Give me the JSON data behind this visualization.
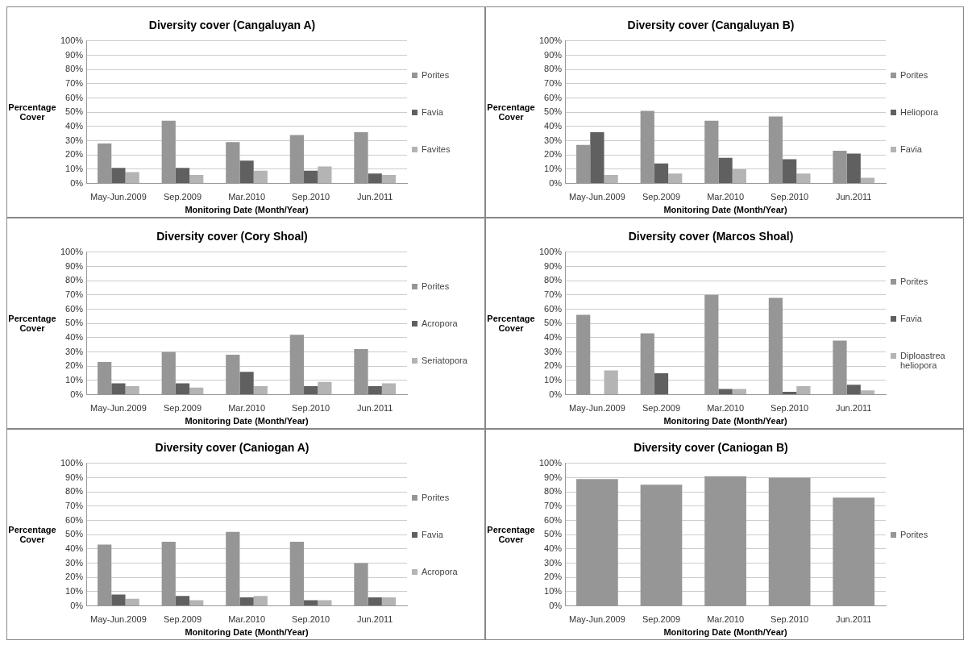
{
  "chart_data": [
    {
      "type": "bar",
      "title": "Diversity cover (Cangaluyan A)",
      "xlabel": "Monitoring Date (Month/Year)",
      "ylabel": "Percentage Cover",
      "categories": [
        "May-Jun.2009",
        "Sep.2009",
        "Mar.2010",
        "Sep.2010",
        "Jun.2011"
      ],
      "series": [
        {
          "name": "Porites",
          "color": "#969696",
          "values": [
            28,
            44,
            29,
            34,
            36
          ]
        },
        {
          "name": "Favia",
          "color": "#606060",
          "values": [
            11,
            11,
            16,
            9,
            7
          ]
        },
        {
          "name": "Favites",
          "color": "#b4b4b4",
          "values": [
            8,
            6,
            9,
            12,
            6
          ]
        }
      ],
      "ylim": [
        0,
        100
      ],
      "yticks": [
        {
          "value": 0,
          "label": "0%"
        },
        {
          "value": 10,
          "label": "10%"
        },
        {
          "value": 20,
          "label": "20%"
        },
        {
          "value": 30,
          "label": "30%"
        },
        {
          "value": 40,
          "label": "40%"
        },
        {
          "value": 50,
          "label": "50%"
        },
        {
          "value": 60,
          "label": "60%"
        },
        {
          "value": 70,
          "label": "70%"
        },
        {
          "value": 80,
          "label": "80%"
        },
        {
          "value": 90,
          "label": "90%"
        },
        {
          "value": 100,
          "label": "100%"
        }
      ],
      "grid": "y",
      "legend": "right"
    },
    {
      "type": "bar",
      "title": "Diversity cover (Cangaluyan B)",
      "xlabel": "Monitoring Date (Month/Year)",
      "ylabel": "Percentage Cover",
      "categories": [
        "May-Jun.2009",
        "Sep.2009",
        "Mar.2010",
        "Sep.2010",
        "Jun.2011"
      ],
      "series": [
        {
          "name": "Porites",
          "color": "#969696",
          "values": [
            27,
            51,
            44,
            47,
            23
          ]
        },
        {
          "name": "Heliopora",
          "color": "#606060",
          "values": [
            36,
            14,
            18,
            17,
            21
          ]
        },
        {
          "name": "Favia",
          "color": "#b4b4b4",
          "values": [
            6,
            7,
            10,
            7,
            4
          ]
        }
      ],
      "ylim": [
        0,
        100
      ],
      "yticks": [
        {
          "value": 0,
          "label": "0%"
        },
        {
          "value": 10,
          "label": "10%"
        },
        {
          "value": 20,
          "label": "20%"
        },
        {
          "value": 30,
          "label": "30%"
        },
        {
          "value": 40,
          "label": "40%"
        },
        {
          "value": 50,
          "label": "50%"
        },
        {
          "value": 60,
          "label": "60%"
        },
        {
          "value": 70,
          "label": "70%"
        },
        {
          "value": 80,
          "label": "80%"
        },
        {
          "value": 90,
          "label": "90%"
        },
        {
          "value": 100,
          "label": "100%"
        }
      ],
      "grid": "y",
      "legend": "right"
    },
    {
      "type": "bar",
      "title": "Diversity cover (Cory Shoal)",
      "xlabel": "Monitoring Date (Month/Year)",
      "ylabel": "Percentage Cover",
      "categories": [
        "May-Jun.2009",
        "Sep.2009",
        "Mar.2010",
        "Sep.2010",
        "Jun.2011"
      ],
      "series": [
        {
          "name": "Porites",
          "color": "#969696",
          "values": [
            23,
            30,
            28,
            42,
            32
          ]
        },
        {
          "name": "Acropora",
          "color": "#606060",
          "values": [
            8,
            8,
            16,
            6,
            6
          ]
        },
        {
          "name": "Seriatopora",
          "color": "#b4b4b4",
          "values": [
            6,
            5,
            6,
            9,
            8
          ]
        }
      ],
      "ylim": [
        0,
        100
      ],
      "yticks": [
        {
          "value": 0,
          "label": "0%"
        },
        {
          "value": 10,
          "label": "10%"
        },
        {
          "value": 20,
          "label": "20%"
        },
        {
          "value": 30,
          "label": "30%"
        },
        {
          "value": 40,
          "label": "40%"
        },
        {
          "value": 50,
          "label": "50%"
        },
        {
          "value": 60,
          "label": "60%"
        },
        {
          "value": 70,
          "label": "70%"
        },
        {
          "value": 80,
          "label": "80%"
        },
        {
          "value": 90,
          "label": "90%"
        },
        {
          "value": 100,
          "label": "100%"
        }
      ],
      "grid": "y",
      "legend": "right"
    },
    {
      "type": "bar",
      "title": "Diversity cover (Marcos Shoal)",
      "xlabel": "Monitoring Date (Month/Year)",
      "ylabel": "Percentage Cover",
      "categories": [
        "May-Jun.2009",
        "Sep.2009",
        "Mar.2010",
        "Sep.2010",
        "Jun.2011"
      ],
      "series": [
        {
          "name": "Porites",
          "color": "#969696",
          "values": [
            56,
            43,
            70,
            68,
            38
          ]
        },
        {
          "name": "Favia",
          "color": "#606060",
          "values": [
            0,
            15,
            4,
            2,
            7
          ]
        },
        {
          "name": "Diploastrea heliopora",
          "color": "#b4b4b4",
          "values": [
            17,
            0,
            4,
            6,
            3
          ]
        }
      ],
      "ylim": [
        0,
        100
      ],
      "yticks": [
        {
          "value": 0,
          "label": "0%"
        },
        {
          "value": 10,
          "label": "10%"
        },
        {
          "value": 20,
          "label": "20%"
        },
        {
          "value": 30,
          "label": "30%"
        },
        {
          "value": 40,
          "label": "40%"
        },
        {
          "value": 50,
          "label": "50%"
        },
        {
          "value": 60,
          "label": "60%"
        },
        {
          "value": 70,
          "label": "70%"
        },
        {
          "value": 80,
          "label": "80%"
        },
        {
          "value": 90,
          "label": "90%"
        },
        {
          "value": 100,
          "label": "100%"
        }
      ],
      "grid": "y",
      "legend": "right"
    },
    {
      "type": "bar",
      "title": "Diversity cover (Caniogan A)",
      "xlabel": "Monitoring Date (Month/Year)",
      "ylabel": "Percentage Cover",
      "categories": [
        "May-Jun.2009",
        "Sep.2009",
        "Mar.2010",
        "Sep.2010",
        "Jun.2011"
      ],
      "series": [
        {
          "name": "Porites",
          "color": "#969696",
          "values": [
            43,
            45,
            52,
            45,
            30
          ]
        },
        {
          "name": "Favia",
          "color": "#606060",
          "values": [
            8,
            7,
            6,
            4,
            6
          ]
        },
        {
          "name": "Acropora",
          "color": "#b4b4b4",
          "values": [
            5,
            4,
            7,
            4,
            6
          ]
        }
      ],
      "ylim": [
        0,
        100
      ],
      "yticks": [
        {
          "value": 0,
          "label": "0%"
        },
        {
          "value": 10,
          "label": "10%"
        },
        {
          "value": 20,
          "label": "20%"
        },
        {
          "value": 30,
          "label": "30%"
        },
        {
          "value": 40,
          "label": "40%"
        },
        {
          "value": 50,
          "label": "50%"
        },
        {
          "value": 60,
          "label": "60%"
        },
        {
          "value": 70,
          "label": "70%"
        },
        {
          "value": 80,
          "label": "80%"
        },
        {
          "value": 90,
          "label": "90%"
        },
        {
          "value": 100,
          "label": "100%"
        }
      ],
      "grid": "y",
      "legend": "right"
    },
    {
      "type": "bar",
      "title": "Diversity cover (Caniogan B)",
      "xlabel": "Monitoring Date (Month/Year)",
      "ylabel": "Percentage Cover",
      "categories": [
        "May-Jun.2009",
        "Sep.2009",
        "Mar.2010",
        "Sep.2010",
        "Jun.2011"
      ],
      "series": [
        {
          "name": "Porites",
          "color": "#969696",
          "values": [
            89,
            85,
            91,
            90,
            76
          ]
        }
      ],
      "ylim": [
        0,
        100
      ],
      "yticks": [
        {
          "value": 0,
          "label": "0%"
        },
        {
          "value": 10,
          "label": "10%"
        },
        {
          "value": 20,
          "label": "20%"
        },
        {
          "value": 30,
          "label": "30%"
        },
        {
          "value": 40,
          "label": "40%"
        },
        {
          "value": 50,
          "label": "50%"
        },
        {
          "value": 60,
          "label": "60%"
        },
        {
          "value": 70,
          "label": "70%"
        },
        {
          "value": 80,
          "label": "80%"
        },
        {
          "value": 90,
          "label": "90%"
        },
        {
          "value": 100,
          "label": "100%"
        }
      ],
      "grid": "y",
      "legend": "right"
    }
  ]
}
